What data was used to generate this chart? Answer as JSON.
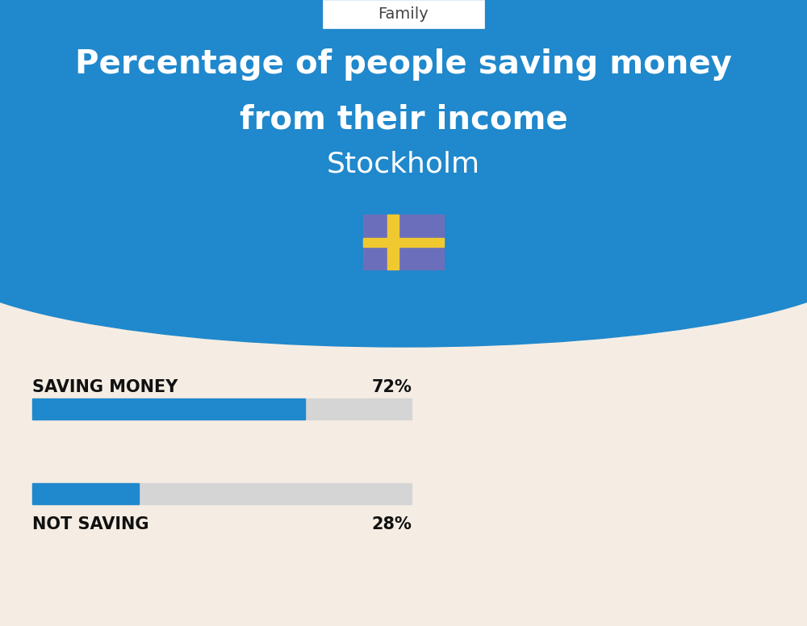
{
  "title_line1": "Percentage of people saving money",
  "title_line2": "from their income",
  "subtitle": "Stockholm",
  "category_label": "Family",
  "bar1_label": "SAVING MONEY",
  "bar1_value": 72,
  "bar1_pct": "72%",
  "bar2_label": "NOT SAVING",
  "bar2_value": 28,
  "bar2_pct": "28%",
  "bar_color": "#2088CC",
  "bar_bg_color": "#D5D5D5",
  "background_top": "#2088CC",
  "background_bottom": "#F5EDE3",
  "text_color_white": "#FFFFFF",
  "text_color_dark": "#111111",
  "flag_blue": "#6B6FBB",
  "flag_yellow": "#F0C930",
  "family_box_color": "#FFFFFF",
  "family_text_color": "#444444"
}
